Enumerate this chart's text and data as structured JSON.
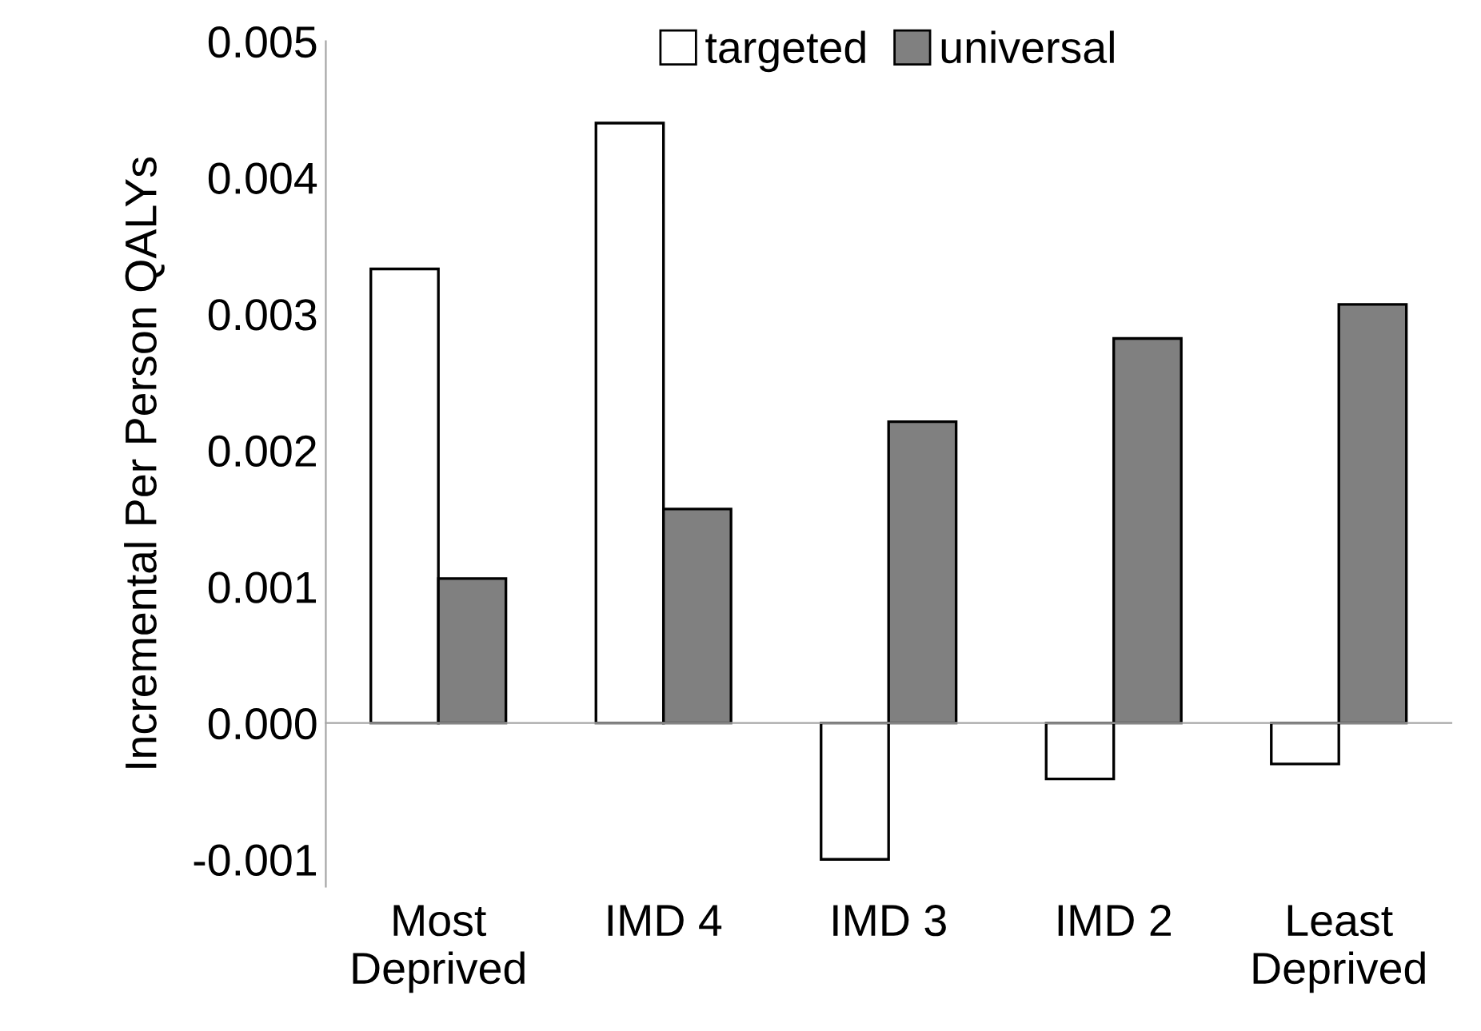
{
  "chart_data": {
    "type": "bar",
    "ylabel": "Incremental Per Person QALYs",
    "categories": [
      "Most\nDeprived",
      "IMD 4",
      "IMD 3",
      "IMD 2",
      "Least\nDeprived"
    ],
    "series": [
      {
        "name": "targeted",
        "color": "#ffffff",
        "values": [
          0.00333,
          0.0044,
          -0.001,
          -0.00041,
          -0.0003
        ]
      },
      {
        "name": "universal",
        "color": "#808080",
        "values": [
          0.00106,
          0.00157,
          0.00221,
          0.00282,
          0.00307
        ]
      }
    ],
    "ylim": [
      -0.0012,
      0.005
    ],
    "yticks": [
      {
        "value": -0.001,
        "label": "-0.001"
      },
      {
        "value": 0,
        "label": "0.000"
      },
      {
        "value": 0.001,
        "label": "0.001"
      },
      {
        "value": 0.002,
        "label": "0.002"
      },
      {
        "value": 0.003,
        "label": "0.003"
      },
      {
        "value": 0.004,
        "label": "0.004"
      },
      {
        "value": 0.005,
        "label": "0.005"
      }
    ],
    "legend": "top"
  }
}
